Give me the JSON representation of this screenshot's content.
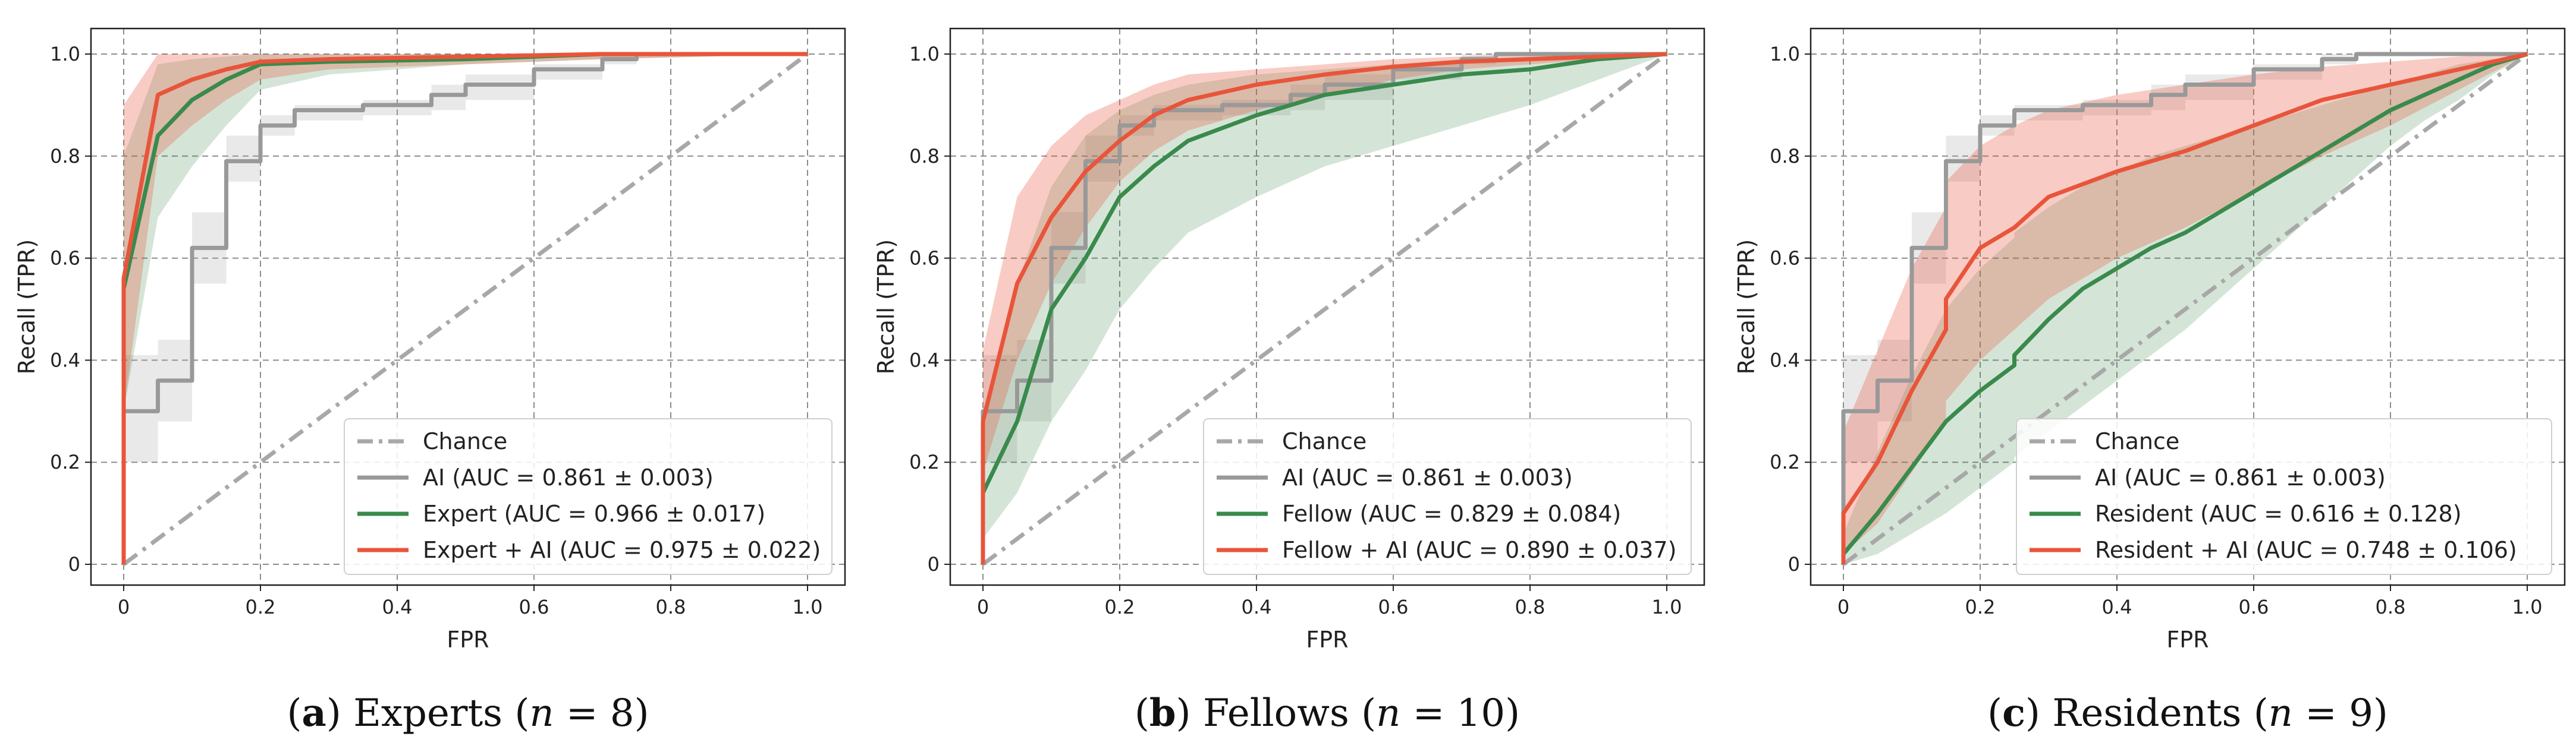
{
  "chart_data": [
    {
      "type": "line",
      "panel_letter": "a",
      "caption_word": "Experts",
      "caption_n": "8",
      "xlabel": "FPR",
      "ylabel": "Recall (TPR)",
      "xlim": [
        0,
        1
      ],
      "ylim": [
        0,
        1
      ],
      "x_ticks": [
        "0",
        "0.2",
        "0.4",
        "0.6",
        "0.8",
        "1.0"
      ],
      "y_ticks": [
        "0",
        "0.2",
        "0.4",
        "0.6",
        "0.8",
        "1.0"
      ],
      "grid": true,
      "legend_position": "bottom-right",
      "legend": [
        "Chance",
        "AI (AUC = 0.861 ± 0.003)",
        "Expert (AUC = 0.966 ± 0.017)",
        "Expert + AI (AUC = 0.975 ± 0.022)"
      ],
      "series": [
        {
          "name": "AI",
          "color": "#999999",
          "style": "step",
          "x": [
            0,
            0,
            0.05,
            0.05,
            0.1,
            0.1,
            0.15,
            0.15,
            0.2,
            0.2,
            0.25,
            0.25,
            0.35,
            0.35,
            0.45,
            0.45,
            0.5,
            0.5,
            0.6,
            0.6,
            0.7,
            0.7,
            0.75,
            0.75,
            1.0
          ],
          "y": [
            0,
            0.3,
            0.3,
            0.36,
            0.36,
            0.62,
            0.62,
            0.79,
            0.79,
            0.86,
            0.86,
            0.89,
            0.89,
            0.9,
            0.9,
            0.92,
            0.92,
            0.94,
            0.94,
            0.97,
            0.97,
            0.99,
            0.99,
            1.0,
            1.0
          ],
          "band_lower": [
            0,
            0.2,
            0.2,
            0.28,
            0.28,
            0.55,
            0.55,
            0.75,
            0.75,
            0.84,
            0.84,
            0.87,
            0.87,
            0.88,
            0.88,
            0.89,
            0.89,
            0.91,
            0.91,
            0.95,
            0.95,
            0.98,
            0.98,
            1.0,
            1.0
          ],
          "band_upper": [
            0,
            0.41,
            0.41,
            0.44,
            0.44,
            0.69,
            0.69,
            0.84,
            0.84,
            0.88,
            0.88,
            0.9,
            0.9,
            0.91,
            0.91,
            0.94,
            0.94,
            0.96,
            0.96,
            0.98,
            0.98,
            1.0,
            1.0,
            1.0,
            1.0
          ]
        },
        {
          "name": "Expert",
          "color": "#3a8a4c",
          "style": "line",
          "x": [
            0,
            0,
            0.05,
            0.1,
            0.15,
            0.2,
            0.3,
            0.5,
            0.7,
            1.0
          ],
          "y": [
            0,
            0.54,
            0.84,
            0.91,
            0.95,
            0.98,
            0.985,
            0.99,
            1.0,
            1.0
          ],
          "band_lower": [
            0,
            0.3,
            0.68,
            0.78,
            0.86,
            0.93,
            0.96,
            0.98,
            0.99,
            1.0
          ],
          "band_upper": [
            0,
            0.8,
            0.98,
            0.99,
            0.995,
            1.0,
            1.0,
            1.0,
            1.0,
            1.0
          ]
        },
        {
          "name": "Expert + AI",
          "color": "#e8553a",
          "style": "line",
          "x": [
            0,
            0,
            0.05,
            0.1,
            0.15,
            0.2,
            0.3,
            0.5,
            0.7,
            1.0
          ],
          "y": [
            0,
            0.56,
            0.92,
            0.95,
            0.97,
            0.985,
            0.99,
            0.995,
            1.0,
            1.0
          ],
          "band_lower": [
            0,
            0.3,
            0.8,
            0.86,
            0.91,
            0.95,
            0.97,
            0.98,
            0.99,
            1.0
          ],
          "band_upper": [
            0,
            0.9,
            1.0,
            1.0,
            1.0,
            1.0,
            1.0,
            1.0,
            1.0,
            1.0
          ]
        }
      ]
    },
    {
      "type": "line",
      "panel_letter": "b",
      "caption_word": "Fellows",
      "caption_n": "10",
      "xlabel": "FPR",
      "ylabel": "Recall (TPR)",
      "xlim": [
        0,
        1
      ],
      "ylim": [
        0,
        1
      ],
      "x_ticks": [
        "0",
        "0.2",
        "0.4",
        "0.6",
        "0.8",
        "1.0"
      ],
      "y_ticks": [
        "0",
        "0.2",
        "0.4",
        "0.6",
        "0.8",
        "1.0"
      ],
      "grid": true,
      "legend_position": "bottom-right",
      "legend": [
        "Chance",
        "AI (AUC = 0.861 ± 0.003)",
        "Fellow (AUC = 0.829 ± 0.084)",
        "Fellow + AI (AUC = 0.890 ± 0.037)"
      ],
      "series": [
        {
          "name": "AI",
          "color": "#999999",
          "style": "step",
          "x": [
            0,
            0,
            0.05,
            0.05,
            0.1,
            0.1,
            0.15,
            0.15,
            0.2,
            0.2,
            0.25,
            0.25,
            0.35,
            0.35,
            0.45,
            0.45,
            0.5,
            0.5,
            0.6,
            0.6,
            0.7,
            0.7,
            0.75,
            0.75,
            1.0
          ],
          "y": [
            0,
            0.3,
            0.3,
            0.36,
            0.36,
            0.62,
            0.62,
            0.79,
            0.79,
            0.86,
            0.86,
            0.89,
            0.89,
            0.9,
            0.9,
            0.92,
            0.92,
            0.94,
            0.94,
            0.97,
            0.97,
            0.99,
            0.99,
            1.0,
            1.0
          ],
          "band_lower": [
            0,
            0.2,
            0.2,
            0.28,
            0.28,
            0.55,
            0.55,
            0.75,
            0.75,
            0.84,
            0.84,
            0.87,
            0.87,
            0.88,
            0.88,
            0.89,
            0.89,
            0.91,
            0.91,
            0.95,
            0.95,
            0.98,
            0.98,
            1.0,
            1.0
          ],
          "band_upper": [
            0,
            0.41,
            0.41,
            0.44,
            0.44,
            0.69,
            0.69,
            0.84,
            0.84,
            0.88,
            0.88,
            0.9,
            0.9,
            0.91,
            0.91,
            0.94,
            0.94,
            0.96,
            0.96,
            0.98,
            0.98,
            1.0,
            1.0,
            1.0,
            1.0
          ]
        },
        {
          "name": "Fellow",
          "color": "#3a8a4c",
          "style": "line",
          "x": [
            0,
            0,
            0.05,
            0.1,
            0.15,
            0.2,
            0.25,
            0.3,
            0.4,
            0.5,
            0.6,
            0.7,
            0.8,
            0.9,
            1.0
          ],
          "y": [
            0,
            0.14,
            0.28,
            0.5,
            0.6,
            0.72,
            0.78,
            0.83,
            0.88,
            0.92,
            0.94,
            0.96,
            0.97,
            0.99,
            1.0
          ],
          "band_lower": [
            0,
            0.05,
            0.14,
            0.28,
            0.38,
            0.5,
            0.58,
            0.65,
            0.72,
            0.78,
            0.82,
            0.86,
            0.9,
            0.95,
            1.0
          ],
          "band_upper": [
            0,
            0.3,
            0.55,
            0.74,
            0.84,
            0.89,
            0.92,
            0.94,
            0.96,
            0.97,
            0.98,
            0.99,
            0.995,
            1.0,
            1.0
          ]
        },
        {
          "name": "Fellow + AI",
          "color": "#e8553a",
          "style": "line",
          "x": [
            0,
            0,
            0.05,
            0.1,
            0.15,
            0.2,
            0.25,
            0.3,
            0.4,
            0.5,
            0.6,
            0.7,
            0.8,
            0.9,
            1.0
          ],
          "y": [
            0,
            0.28,
            0.55,
            0.68,
            0.77,
            0.83,
            0.88,
            0.91,
            0.94,
            0.96,
            0.975,
            0.985,
            0.99,
            0.995,
            1.0
          ],
          "band_lower": [
            0,
            0.18,
            0.4,
            0.55,
            0.66,
            0.75,
            0.81,
            0.85,
            0.89,
            0.92,
            0.95,
            0.97,
            0.98,
            0.99,
            1.0
          ],
          "band_upper": [
            0,
            0.42,
            0.72,
            0.82,
            0.88,
            0.91,
            0.94,
            0.96,
            0.97,
            0.98,
            0.99,
            0.995,
            1.0,
            1.0,
            1.0
          ]
        }
      ]
    },
    {
      "type": "line",
      "panel_letter": "c",
      "caption_word": "Residents",
      "caption_n": "9",
      "xlabel": "FPR",
      "ylabel": "Recall (TPR)",
      "xlim": [
        0,
        1
      ],
      "ylim": [
        0,
        1
      ],
      "x_ticks": [
        "0",
        "0.2",
        "0.4",
        "0.6",
        "0.8",
        "1.0"
      ],
      "y_ticks": [
        "0",
        "0.2",
        "0.4",
        "0.6",
        "0.8",
        "1.0"
      ],
      "grid": true,
      "legend_position": "bottom-right",
      "legend": [
        "Chance",
        "AI (AUC = 0.861 ± 0.003)",
        "Resident (AUC = 0.616 ± 0.128)",
        "Resident + AI (AUC = 0.748 ± 0.106)"
      ],
      "series": [
        {
          "name": "AI",
          "color": "#999999",
          "style": "step",
          "x": [
            0,
            0,
            0.05,
            0.05,
            0.1,
            0.1,
            0.15,
            0.15,
            0.2,
            0.2,
            0.25,
            0.25,
            0.35,
            0.35,
            0.45,
            0.45,
            0.5,
            0.5,
            0.6,
            0.6,
            0.7,
            0.7,
            0.75,
            0.75,
            1.0
          ],
          "y": [
            0,
            0.3,
            0.3,
            0.36,
            0.36,
            0.62,
            0.62,
            0.79,
            0.79,
            0.86,
            0.86,
            0.89,
            0.89,
            0.9,
            0.9,
            0.92,
            0.92,
            0.94,
            0.94,
            0.97,
            0.97,
            0.99,
            0.99,
            1.0,
            1.0
          ],
          "band_lower": [
            0,
            0.2,
            0.2,
            0.28,
            0.28,
            0.55,
            0.55,
            0.75,
            0.75,
            0.84,
            0.84,
            0.87,
            0.87,
            0.88,
            0.88,
            0.89,
            0.89,
            0.91,
            0.91,
            0.95,
            0.95,
            0.98,
            0.98,
            1.0,
            1.0
          ],
          "band_upper": [
            0,
            0.41,
            0.41,
            0.44,
            0.44,
            0.69,
            0.69,
            0.84,
            0.84,
            0.88,
            0.88,
            0.9,
            0.9,
            0.91,
            0.91,
            0.94,
            0.94,
            0.96,
            0.96,
            0.98,
            0.98,
            1.0,
            1.0,
            1.0,
            1.0
          ]
        },
        {
          "name": "Resident",
          "color": "#3a8a4c",
          "style": "line",
          "x": [
            0,
            0,
            0.05,
            0.1,
            0.15,
            0.2,
            0.25,
            0.25,
            0.3,
            0.35,
            0.4,
            0.45,
            0.5,
            0.55,
            0.6,
            0.65,
            0.7,
            0.75,
            0.8,
            0.85,
            0.9,
            0.95,
            1.0
          ],
          "y": [
            0,
            0.02,
            0.1,
            0.19,
            0.28,
            0.34,
            0.39,
            0.41,
            0.48,
            0.54,
            0.58,
            0.62,
            0.65,
            0.69,
            0.73,
            0.77,
            0.81,
            0.85,
            0.89,
            0.92,
            0.95,
            0.98,
            1.0
          ],
          "band_lower": [
            0,
            0.0,
            0.02,
            0.06,
            0.1,
            0.15,
            0.2,
            0.21,
            0.26,
            0.31,
            0.36,
            0.41,
            0.46,
            0.52,
            0.58,
            0.64,
            0.7,
            0.76,
            0.82,
            0.87,
            0.91,
            0.96,
            1.0
          ],
          "band_upper": [
            0,
            0.06,
            0.22,
            0.37,
            0.5,
            0.58,
            0.64,
            0.65,
            0.7,
            0.74,
            0.77,
            0.8,
            0.82,
            0.84,
            0.86,
            0.88,
            0.9,
            0.92,
            0.94,
            0.96,
            0.98,
            0.99,
            1.0
          ]
        },
        {
          "name": "Resident + AI",
          "color": "#e8553a",
          "style": "line",
          "x": [
            0,
            0,
            0.05,
            0.1,
            0.15,
            0.15,
            0.2,
            0.25,
            0.3,
            0.4,
            0.5,
            0.6,
            0.7,
            0.8,
            0.9,
            1.0
          ],
          "y": [
            0,
            0.1,
            0.2,
            0.34,
            0.46,
            0.52,
            0.62,
            0.66,
            0.72,
            0.77,
            0.81,
            0.86,
            0.91,
            0.94,
            0.97,
            1.0
          ],
          "band_lower": [
            0,
            0.02,
            0.08,
            0.18,
            0.28,
            0.32,
            0.4,
            0.46,
            0.52,
            0.6,
            0.66,
            0.73,
            0.8,
            0.86,
            0.93,
            1.0
          ],
          "band_upper": [
            0,
            0.26,
            0.42,
            0.58,
            0.7,
            0.75,
            0.82,
            0.86,
            0.89,
            0.92,
            0.94,
            0.96,
            0.975,
            0.985,
            0.995,
            1.0
          ]
        }
      ]
    }
  ]
}
